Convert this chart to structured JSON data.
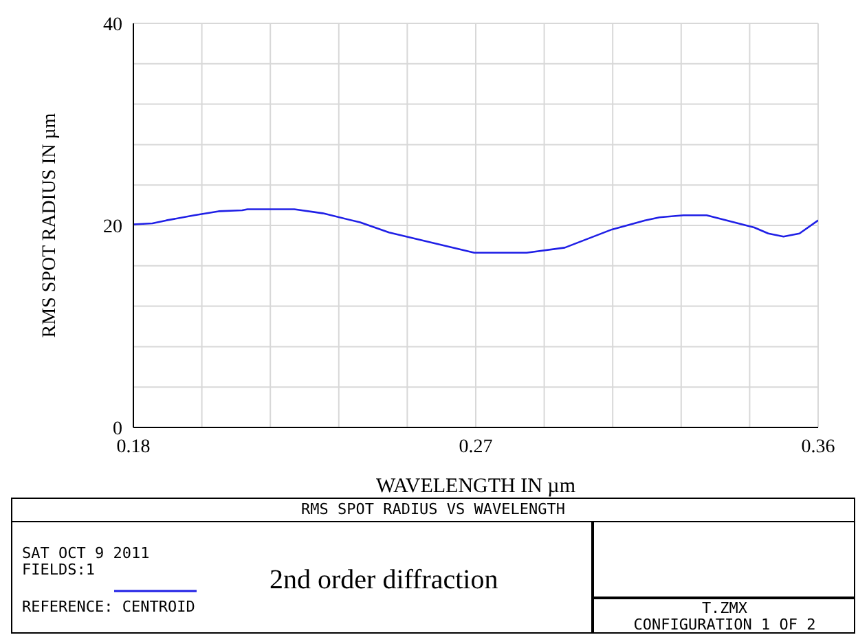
{
  "chart_data": {
    "type": "line",
    "title": "RMS SPOT RADIUS VS WAVELENGTH",
    "xlabel": "WAVELENGTH IN µm",
    "ylabel": "RMS SPOT RADIUS IN µm",
    "x": [
      0.18,
      0.185,
      0.1887,
      0.196,
      0.2024,
      0.2086,
      0.21,
      0.2223,
      0.2298,
      0.2396,
      0.2472,
      0.2696,
      0.2834,
      0.2934,
      0.3058,
      0.3145,
      0.3183,
      0.3246,
      0.3307,
      0.3432,
      0.3469,
      0.3509,
      0.3551,
      0.36
    ],
    "series": [
      {
        "color": "#1f1fe6",
        "values": [
          20.1,
          20.2,
          20.5,
          21.0,
          21.4,
          21.5,
          21.6,
          21.6,
          21.2,
          20.3,
          19.3,
          17.3,
          17.3,
          17.8,
          19.6,
          20.5,
          20.8,
          21.0,
          21.0,
          19.8,
          19.2,
          18.9,
          19.2,
          20.5
        ]
      }
    ],
    "xlim": [
      0.18,
      0.36
    ],
    "xticks": [
      0.18,
      {
        "value": 0.198,
        "label": null
      },
      {
        "value": 0.216,
        "label": null
      },
      {
        "value": 0.234,
        "label": null
      },
      {
        "value": 0.252,
        "label": null
      },
      0.27,
      {
        "value": 0.288,
        "label": null
      },
      {
        "value": 0.306,
        "label": null
      },
      {
        "value": 0.324,
        "label": null
      },
      {
        "value": 0.342,
        "label": null
      },
      0.36
    ],
    "ylim": [
      0,
      40
    ],
    "yticks": [
      0,
      {
        "value": 4,
        "label": null
      },
      {
        "value": 8,
        "label": null
      },
      {
        "value": 12,
        "label": null
      },
      {
        "value": 16,
        "label": null
      },
      20,
      {
        "value": 24,
        "label": null
      },
      {
        "value": 28,
        "label": null
      },
      {
        "value": 32,
        "label": null
      },
      {
        "value": 36,
        "label": null
      },
      40
    ],
    "grid": true,
    "legend": false,
    "marker": "none",
    "line_style": "solid",
    "annotations": [
      "SAT OCT 9 2011",
      "FIELDS:1",
      "REFERENCE: CENTROID",
      "2nd order diffraction",
      "T.ZMX",
      "CONFIGURATION 1 OF 2"
    ]
  }
}
